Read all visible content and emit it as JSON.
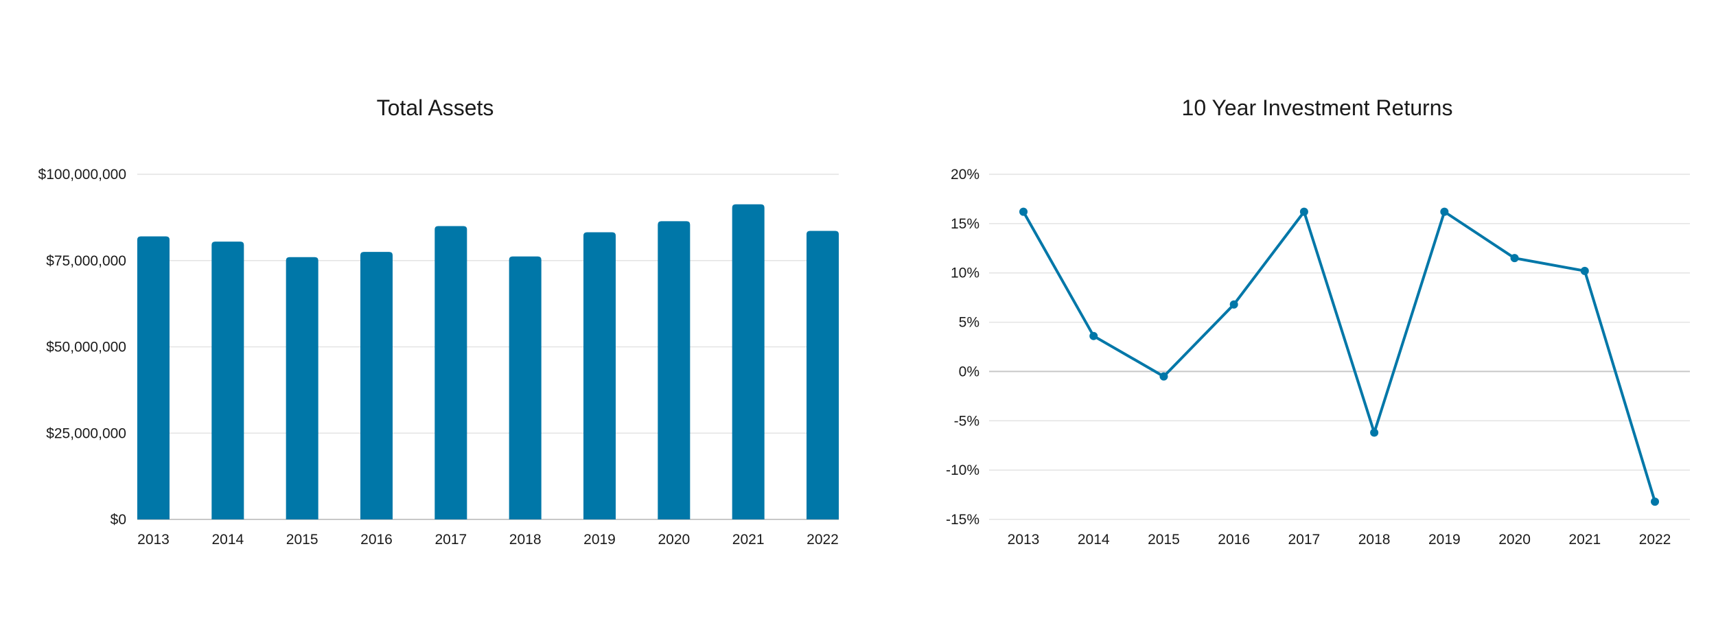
{
  "chart_data": [
    {
      "type": "bar",
      "title": "Total Assets",
      "categories": [
        "2013",
        "2014",
        "2015",
        "2016",
        "2017",
        "2018",
        "2019",
        "2020",
        "2021",
        "2022"
      ],
      "values": [
        82000000,
        80500000,
        76000000,
        77500000,
        85000000,
        76200000,
        83200000,
        86400000,
        91300000,
        83600000
      ],
      "ylim": [
        0,
        100000000
      ],
      "yticks": [
        0,
        25000000,
        50000000,
        75000000,
        100000000
      ],
      "ytick_labels": [
        "$0",
        "$25,000,000",
        "$50,000,000",
        "$75,000,000",
        "$100,000,000"
      ],
      "color": "#0077a8",
      "grid": true
    },
    {
      "type": "line",
      "title": "10 Year Investment Returns",
      "categories": [
        "2013",
        "2014",
        "2015",
        "2016",
        "2017",
        "2018",
        "2019",
        "2020",
        "2021",
        "2022"
      ],
      "values": [
        16.2,
        3.6,
        -0.5,
        6.8,
        16.2,
        -6.2,
        16.2,
        11.5,
        10.2,
        -13.2
      ],
      "ylim": [
        -15,
        20
      ],
      "yticks": [
        -15,
        -10,
        -5,
        0,
        5,
        10,
        15,
        20
      ],
      "ytick_labels": [
        "-15%",
        "-10%",
        "-5%",
        "0%",
        "5%",
        "10%",
        "15%",
        "20%"
      ],
      "color": "#0077a8",
      "grid": true
    }
  ]
}
